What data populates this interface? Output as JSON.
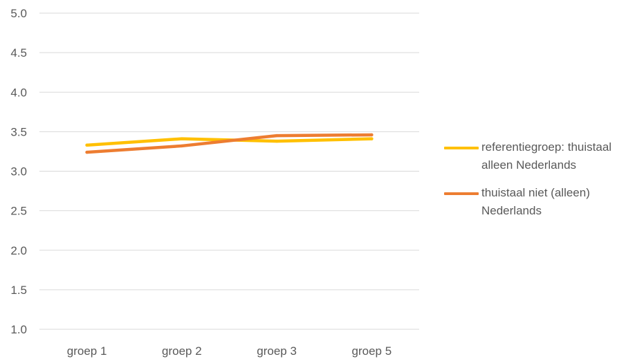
{
  "chart_data": {
    "type": "line",
    "categories": [
      "groep 1",
      "groep 2",
      "groep 3",
      "groep 5"
    ],
    "series": [
      {
        "name": "referentiegroep: thuistaal alleen Nederlands",
        "label_lines": [
          "referentiegroep: thuistaal",
          "alleen Nederlands"
        ],
        "color": "#FFC000",
        "values": [
          3.33,
          3.41,
          3.38,
          3.41
        ]
      },
      {
        "name": "thuistaal niet (alleen) Nederlands",
        "label_lines": [
          "thuistaal niet (alleen)",
          "Nederlands"
        ],
        "color": "#ED7D31",
        "values": [
          3.24,
          3.32,
          3.45,
          3.46
        ]
      }
    ],
    "ylim": [
      1.0,
      5.0
    ],
    "yticks": [
      "1.0",
      "1.5",
      "2.0",
      "2.5",
      "3.0",
      "3.5",
      "4.0",
      "4.5",
      "5.0"
    ],
    "grid": true,
    "legend_position": "right",
    "title": "",
    "xlabel": "",
    "ylabel": ""
  }
}
